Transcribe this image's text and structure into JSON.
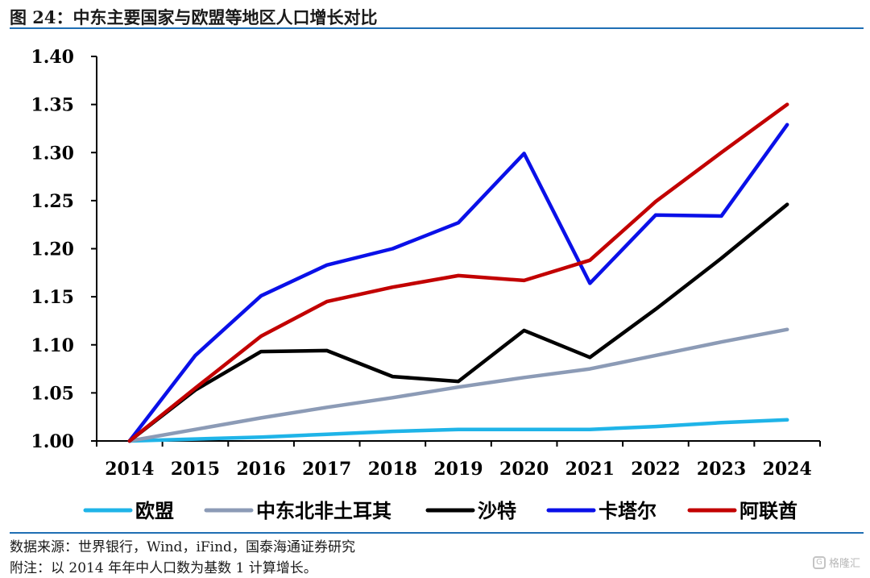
{
  "figure": {
    "title": "图 24：中东主要国家与欧盟等地区人口增长对比",
    "source_note": "数据来源：世界银行，Wind，iFind，国泰海通证券研究",
    "annotation_note": "附注：以 2014 年年中人口数为基数 1 计算增长。",
    "watermark": "格隆汇"
  },
  "chart_data": {
    "type": "line",
    "title": "",
    "xlabel": "",
    "ylabel": "",
    "categories": [
      "2014",
      "2015",
      "2016",
      "2017",
      "2018",
      "2019",
      "2020",
      "2021",
      "2022",
      "2023",
      "2024"
    ],
    "ylim": [
      1.0,
      1.4
    ],
    "yticks": [
      "1.00",
      "1.05",
      "1.10",
      "1.15",
      "1.20",
      "1.25",
      "1.30",
      "1.35",
      "1.40"
    ],
    "grid": false,
    "legend_position": "bottom",
    "series": [
      {
        "name": "欧盟",
        "color": "#1fb4e8",
        "values": [
          1.0,
          1.002,
          1.004,
          1.007,
          1.01,
          1.012,
          1.012,
          1.012,
          1.015,
          1.019,
          1.022
        ]
      },
      {
        "name": "中东北非土耳其",
        "color": "#8c9bb6",
        "values": [
          1.0,
          1.012,
          1.024,
          1.035,
          1.045,
          1.056,
          1.066,
          1.075,
          1.089,
          1.103,
          1.116
        ]
      },
      {
        "name": "沙特",
        "color": "#000000",
        "values": [
          1.0,
          1.053,
          1.093,
          1.094,
          1.067,
          1.062,
          1.115,
          1.087,
          1.137,
          1.19,
          1.246
        ]
      },
      {
        "name": "卡塔尔",
        "color": "#0a10e8",
        "values": [
          1.0,
          1.089,
          1.151,
          1.183,
          1.2,
          1.227,
          1.299,
          1.164,
          1.235,
          1.234,
          1.329
        ]
      },
      {
        "name": "阿联酋",
        "color": "#c20000",
        "values": [
          1.0,
          1.055,
          1.109,
          1.145,
          1.16,
          1.172,
          1.167,
          1.188,
          1.249,
          1.3,
          1.35
        ]
      }
    ]
  }
}
